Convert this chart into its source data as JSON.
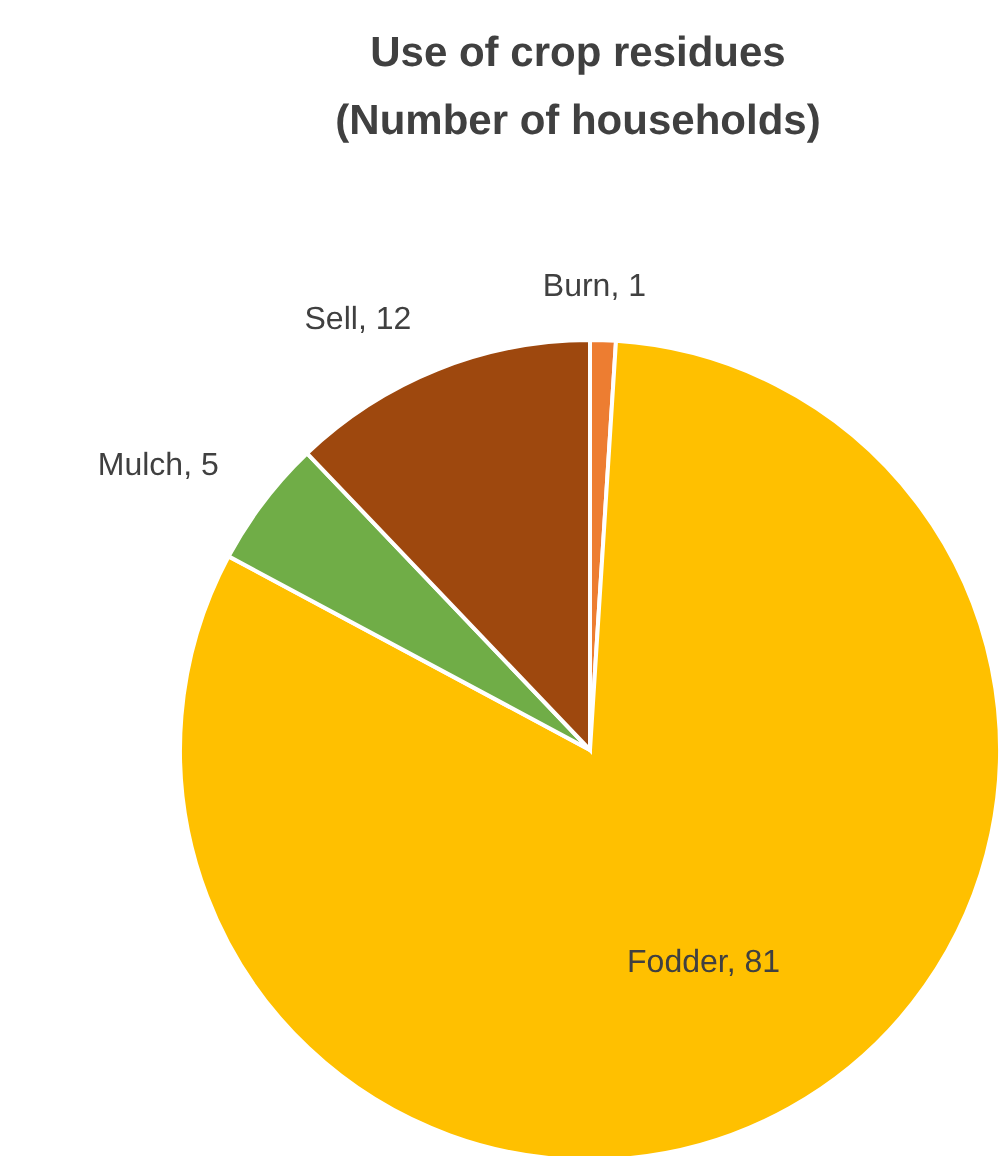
{
  "chart_data": {
    "type": "pie",
    "title": "Use of crop residues\n(Number of households)",
    "categories": [
      "Burn",
      "Fodder",
      "Mulch",
      "Sell"
    ],
    "values": [
      1,
      81,
      5,
      12
    ],
    "colors": [
      "#ed7d31",
      "#ffc000",
      "#70ad47",
      "#9e480e"
    ],
    "value_labels": [
      ", 1",
      ", 81",
      ", 5",
      ", 12"
    ],
    "legend": false
  }
}
